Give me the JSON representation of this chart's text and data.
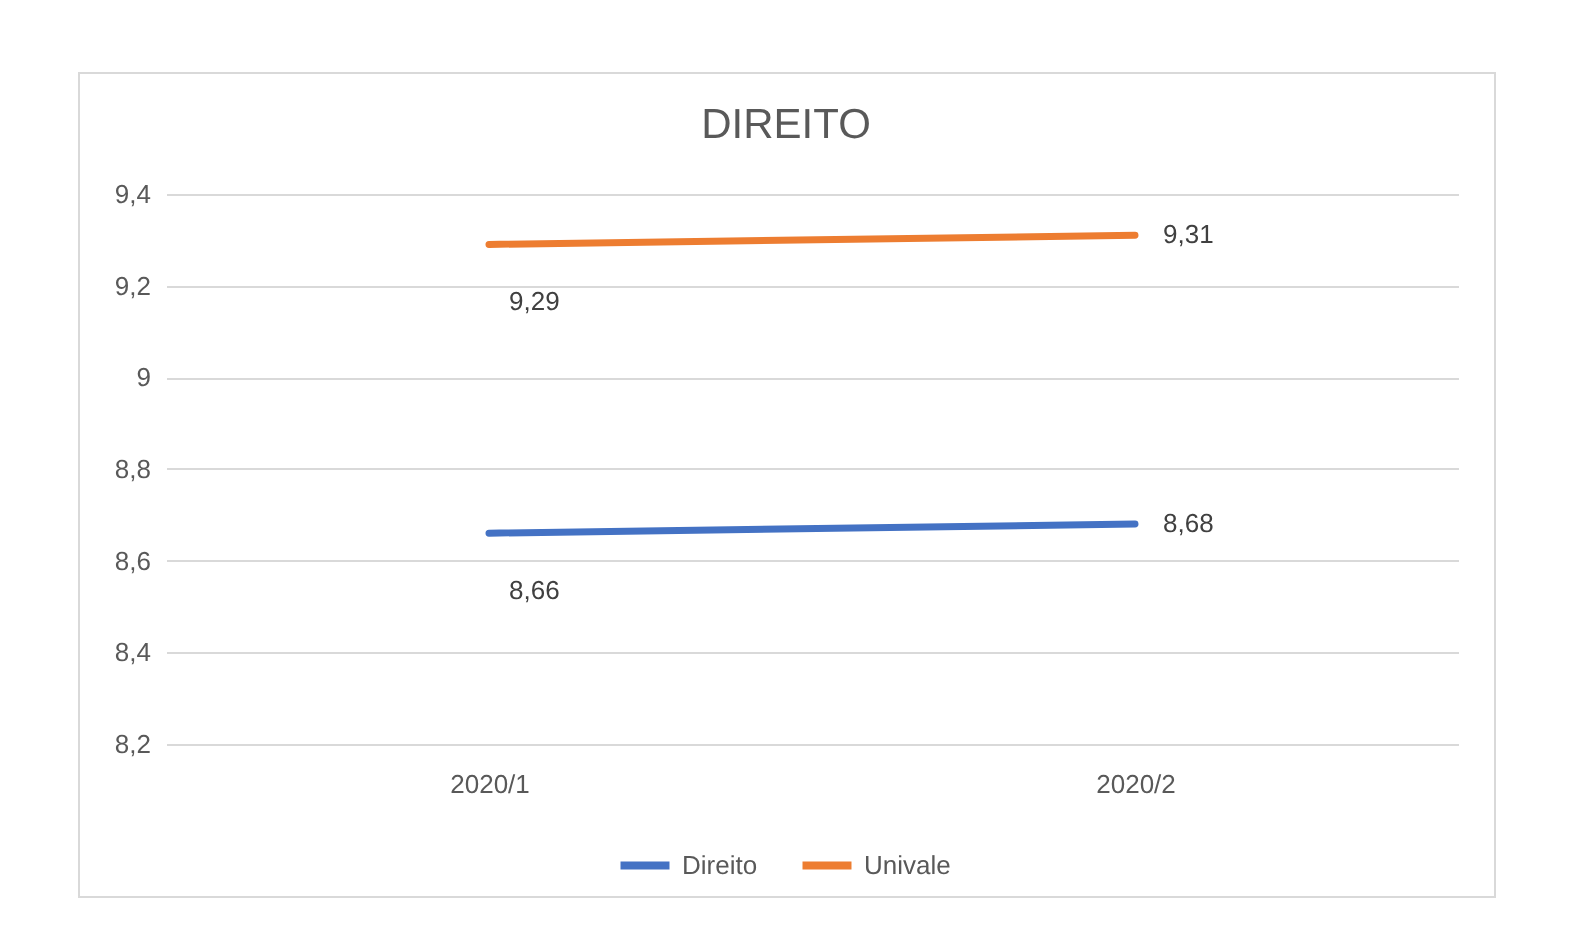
{
  "chart_data": {
    "type": "line",
    "title": "DIREITO",
    "categories": [
      "2020/1",
      "2020/2"
    ],
    "series": [
      {
        "name": "Direito",
        "color": "#4472c4",
        "values": [
          8.66,
          8.68
        ],
        "value_labels": [
          "8,66",
          "8,68"
        ]
      },
      {
        "name": "Univale",
        "color": "#ed7d31",
        "values": [
          9.29,
          9.31
        ],
        "value_labels": [
          "9,29",
          "9,31"
        ]
      }
    ],
    "ylim": [
      8.2,
      9.4
    ],
    "yticks": [
      {
        "value": 8.2,
        "label": "8,2"
      },
      {
        "value": 8.4,
        "label": "8,4"
      },
      {
        "value": 8.6,
        "label": "8,6"
      },
      {
        "value": 8.8,
        "label": "8,8"
      },
      9,
      {
        "value": 9.2,
        "label": "9,2"
      },
      {
        "value": 9.4,
        "label": "9,4"
      }
    ],
    "grid": "y",
    "legend": "bottom"
  }
}
